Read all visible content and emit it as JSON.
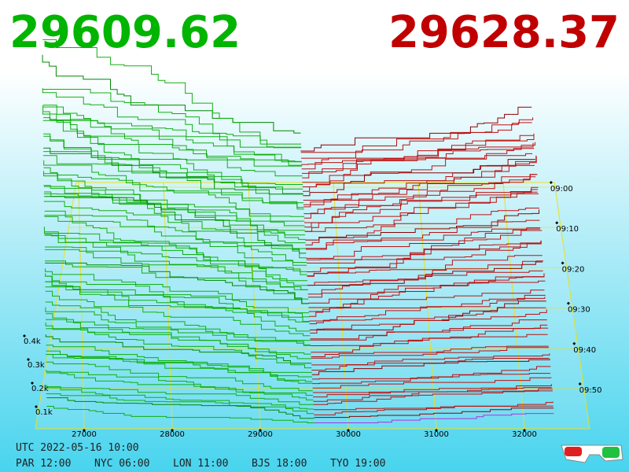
{
  "header": {
    "bid": "29609.62",
    "ask": "29628.37"
  },
  "price_ticks": [
    27000,
    28000,
    29000,
    30000,
    31000,
    32000
  ],
  "depth_ticks": [
    "0.4k",
    "0.3k",
    "0.2k",
    "0.1k"
  ],
  "time_ticks": [
    "09:00",
    "09:10",
    "09:20",
    "09:30",
    "09:40",
    "09:50"
  ],
  "footer": {
    "date": "UTC 2022-05-16 10:00",
    "cities": [
      "PAR 12:00",
      "NYC 06:00",
      "LON 11:00",
      "BJS 18:00",
      "TYO 19:00"
    ]
  }
}
